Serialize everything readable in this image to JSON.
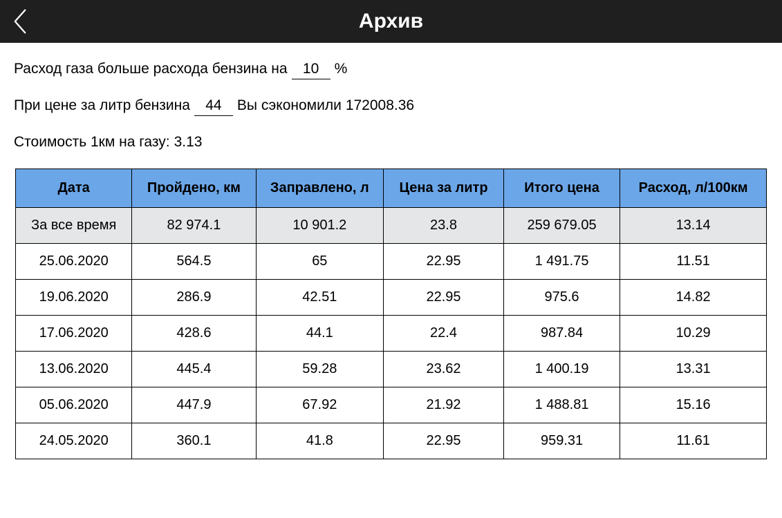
{
  "header": {
    "title": "Архив"
  },
  "info": {
    "gas_exceed_prefix": "Расход газа больше расхода бензина на",
    "gas_exceed_value": "10",
    "gas_exceed_suffix": "%",
    "price_prefix": "При цене за литр бензина",
    "price_value": "44",
    "price_mid": "Вы сэкономили",
    "saved_amount": "172008.36",
    "cost_per_km_label": "Стоимость 1км на газу:",
    "cost_per_km_value": "3.13"
  },
  "table": {
    "columns": [
      "Дата",
      "Пройдено, км",
      "Заправлено, л",
      "Цена за литр",
      "Итого цена",
      "Расход, л/100км"
    ],
    "summary": [
      "За все время",
      "82 974.1",
      "10 901.2",
      "23.8",
      "259 679.05",
      "13.14"
    ],
    "rows": [
      [
        "25.06.2020",
        "564.5",
        "65",
        "22.95",
        "1 491.75",
        "11.51"
      ],
      [
        "19.06.2020",
        "286.9",
        "42.51",
        "22.95",
        "975.6",
        "14.82"
      ],
      [
        "17.06.2020",
        "428.6",
        "44.1",
        "22.4",
        "987.84",
        "10.29"
      ],
      [
        "13.06.2020",
        "445.4",
        "59.28",
        "23.62",
        "1 400.19",
        "13.31"
      ],
      [
        "05.06.2020",
        "447.9",
        "67.92",
        "21.92",
        "1 488.81",
        "15.16"
      ],
      [
        "24.05.2020",
        "360.1",
        "41.8",
        "22.95",
        "959.31",
        "11.61"
      ]
    ],
    "header_bg": "#6ba6e8",
    "summary_bg": "#e4e6e8",
    "border_color": "#000000"
  }
}
